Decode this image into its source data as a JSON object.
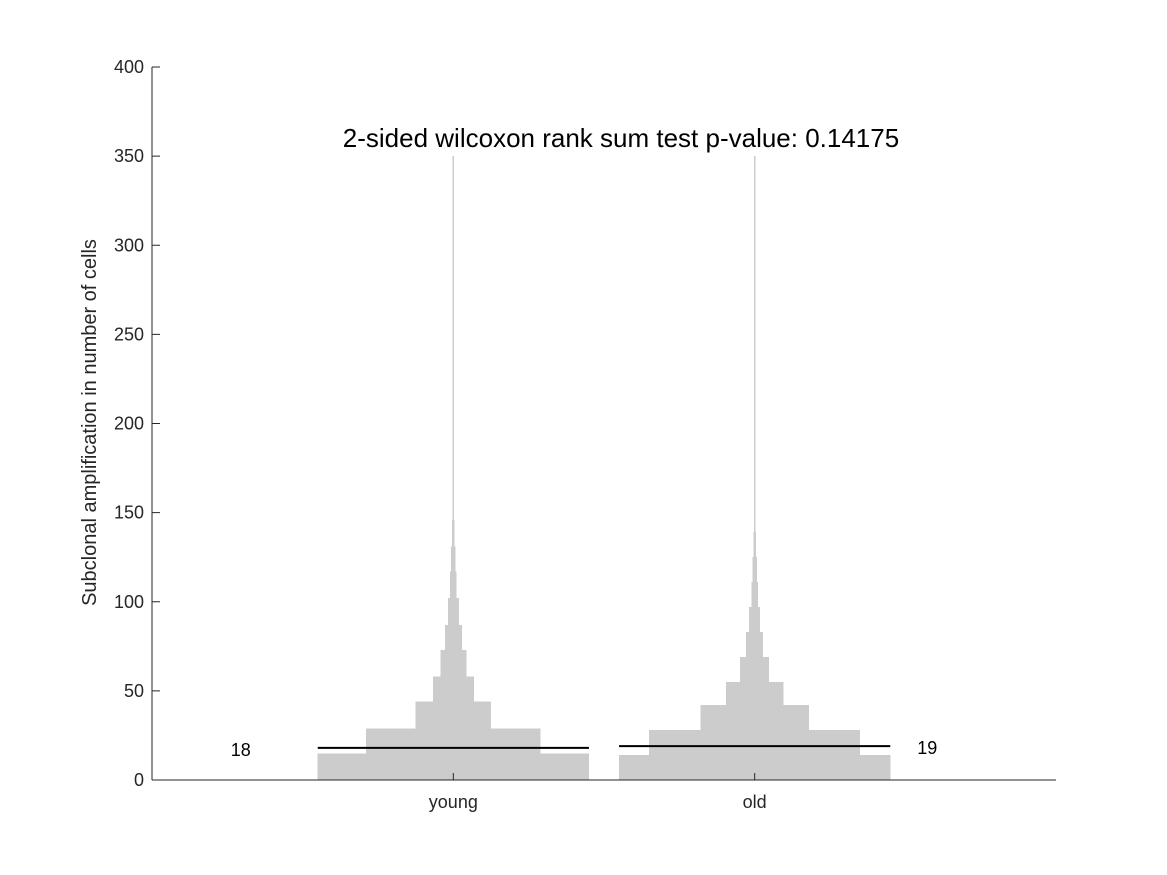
{
  "chart_data": {
    "type": "violin-histogram",
    "title": "2-sided wilcoxon rank sum test p-value:  0.14175",
    "ylabel": "Subclonal amplification in number of cells",
    "xlabel": "",
    "ylim": [
      0,
      400
    ],
    "yticks": [
      0,
      50,
      100,
      150,
      200,
      250,
      300,
      350,
      400
    ],
    "ytick_labels": [
      "0",
      "50",
      "100",
      "150",
      "200",
      "250",
      "300",
      "350",
      "400"
    ],
    "grid": false,
    "fill_color": "#cccccc",
    "median_color": "#000000",
    "groups": [
      {
        "label": "young",
        "median": 18,
        "median_label": "18",
        "median_label_side": "left",
        "bins": [
          {
            "y0": 0,
            "y1": 15,
            "half_width": 0.45
          },
          {
            "y0": 15,
            "y1": 29,
            "half_width": 0.29
          },
          {
            "y0": 29,
            "y1": 44,
            "half_width": 0.125
          },
          {
            "y0": 44,
            "y1": 58,
            "half_width": 0.068
          },
          {
            "y0": 58,
            "y1": 73,
            "half_width": 0.043
          },
          {
            "y0": 73,
            "y1": 87,
            "half_width": 0.028
          },
          {
            "y0": 87,
            "y1": 102,
            "half_width": 0.018
          },
          {
            "y0": 102,
            "y1": 117,
            "half_width": 0.011
          },
          {
            "y0": 117,
            "y1": 131,
            "half_width": 0.007
          },
          {
            "y0": 131,
            "y1": 146,
            "half_width": 0.004
          },
          {
            "y0": 146,
            "y1": 160,
            "half_width": 0.003
          },
          {
            "y0": 160,
            "y1": 190,
            "half_width": 0.002
          },
          {
            "y0": 190,
            "y1": 350,
            "half_width": 0.0008
          }
        ]
      },
      {
        "label": "old",
        "median": 19,
        "median_label": "19",
        "median_label_side": "right",
        "bins": [
          {
            "y0": 0,
            "y1": 14,
            "half_width": 0.45
          },
          {
            "y0": 14,
            "y1": 28,
            "half_width": 0.35
          },
          {
            "y0": 28,
            "y1": 42,
            "half_width": 0.18
          },
          {
            "y0": 42,
            "y1": 55,
            "half_width": 0.095
          },
          {
            "y0": 55,
            "y1": 69,
            "half_width": 0.048
          },
          {
            "y0": 69,
            "y1": 83,
            "half_width": 0.028
          },
          {
            "y0": 83,
            "y1": 97,
            "half_width": 0.018
          },
          {
            "y0": 97,
            "y1": 111,
            "half_width": 0.011
          },
          {
            "y0": 111,
            "y1": 125,
            "half_width": 0.007
          },
          {
            "y0": 125,
            "y1": 139,
            "half_width": 0.004
          },
          {
            "y0": 139,
            "y1": 166,
            "half_width": 0.0025
          },
          {
            "y0": 166,
            "y1": 350,
            "half_width": 0.0008
          }
        ]
      }
    ]
  }
}
